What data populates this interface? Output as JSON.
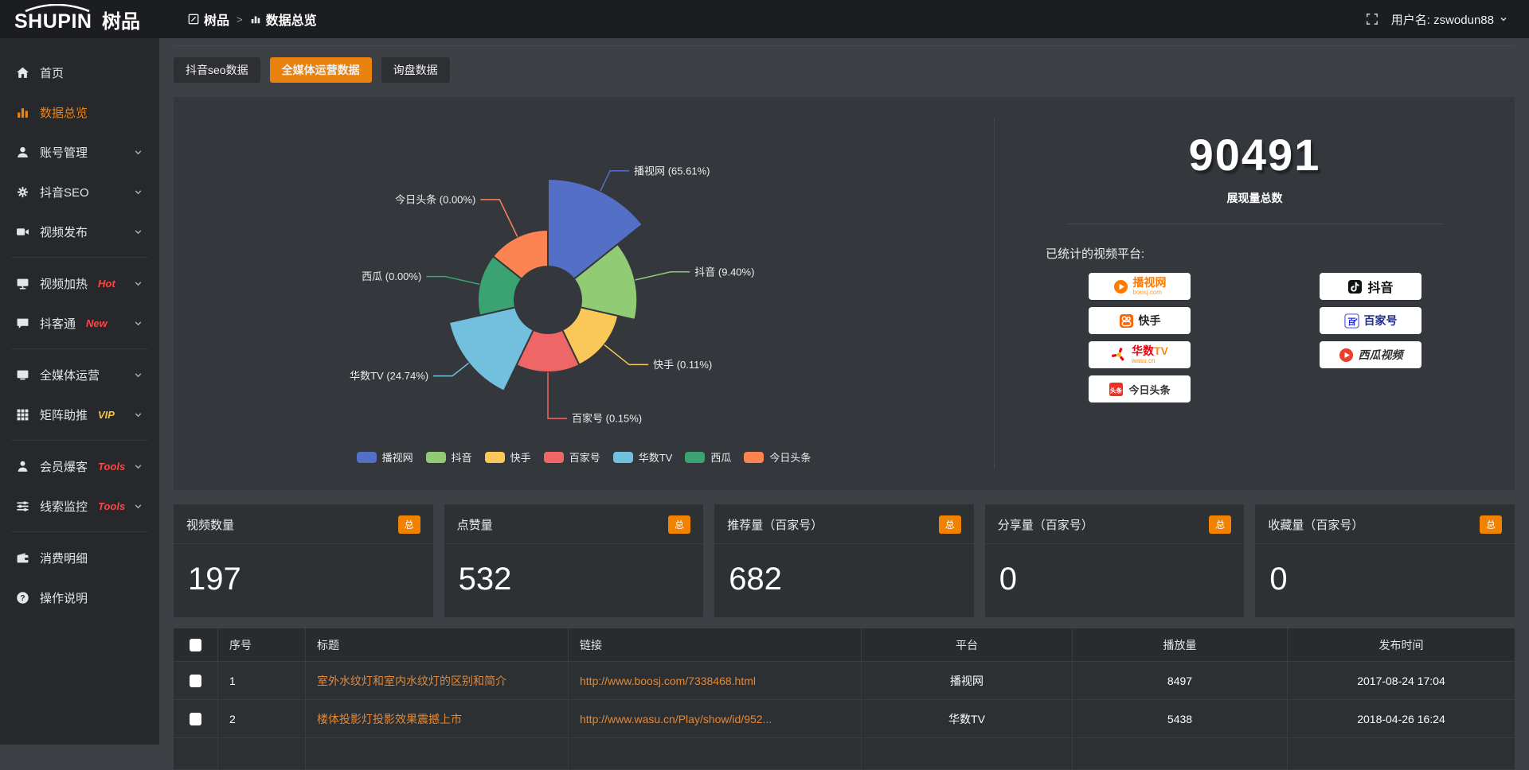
{
  "topbar": {
    "logo_main": "SHUPIN",
    "logo_cn": "树品",
    "breadcrumb_root": "树品",
    "separator": ">",
    "breadcrumb_current": "数据总览",
    "username": "用户名: zswodun88"
  },
  "sidebar": {
    "items": [
      {
        "id": "home",
        "label": "首页",
        "icon": "home-icon"
      },
      {
        "id": "data-overview",
        "label": "数据总览",
        "icon": "bar-chart-icon",
        "active": true
      },
      {
        "id": "account-management",
        "label": "账号管理",
        "icon": "user-icon",
        "chevron": true
      },
      {
        "id": "douyin-seo",
        "label": "抖音SEO",
        "icon": "gear-icon",
        "chevron": true
      },
      {
        "id": "video-publish",
        "label": "视频发布",
        "icon": "video-camera-icon",
        "chevron": true,
        "divider_after": true
      },
      {
        "id": "video-heat",
        "label": "视频加热",
        "icon": "tv-icon",
        "chevron": true,
        "badge": "Hot",
        "badge_color": "#ff4545"
      },
      {
        "id": "douketong",
        "label": "抖客通",
        "icon": "chat-icon",
        "chevron": true,
        "badge": "New",
        "badge_color": "#ff4545",
        "divider_after": true
      },
      {
        "id": "media-operation",
        "label": "全媒体运营",
        "icon": "monitor-icon",
        "chevron": true
      },
      {
        "id": "matrix-boost",
        "label": "矩阵助推",
        "icon": "grid-icon",
        "chevron": true,
        "badge": "VIP",
        "badge_color": "#f5c43c",
        "divider_after": true
      },
      {
        "id": "member-baoke",
        "label": "会员爆客",
        "icon": "person-icon",
        "chevron": true,
        "badge": "Tools",
        "badge_color": "#ff4545"
      },
      {
        "id": "clue-monitor",
        "label": "线索监控",
        "icon": "sliders-icon",
        "chevron": true,
        "badge": "Tools",
        "badge_color": "#ff4545",
        "divider_after": true
      },
      {
        "id": "expense-detail",
        "label": "消费明细",
        "icon": "wallet-icon"
      },
      {
        "id": "help",
        "label": "操作说明",
        "icon": "question-icon"
      }
    ]
  },
  "tabs": [
    {
      "id": "douyin-seo-data",
      "label": "抖音seo数据",
      "active": false
    },
    {
      "id": "media-operation-data",
      "label": "全媒体运营数据",
      "active": true
    },
    {
      "id": "inquiry-data",
      "label": "询盘数据",
      "active": false
    }
  ],
  "chart_data": {
    "type": "pie",
    "variant": "nightingale-rose",
    "legend_position": "bottom",
    "slices": [
      {
        "name": "播视网",
        "percent": 65.61,
        "percent_text": "65.61%",
        "color": "#5470c6"
      },
      {
        "name": "抖音",
        "percent": 9.4,
        "percent_text": "9.40%",
        "color": "#91cc75"
      },
      {
        "name": "快手",
        "percent": 0.11,
        "percent_text": "0.11%",
        "color": "#fac858"
      },
      {
        "name": "百家号",
        "percent": 0.15,
        "percent_text": "0.15%",
        "color": "#ee6666"
      },
      {
        "name": "华数TV",
        "percent": 24.74,
        "percent_text": "24.74%",
        "color": "#73c0de"
      },
      {
        "name": "西瓜",
        "percent": 0.0,
        "percent_text": "0.00%",
        "color": "#3ba272"
      },
      {
        "name": "今日头条",
        "percent": 0.0,
        "percent_text": "0.00%",
        "color": "#fc8452"
      }
    ],
    "legend": [
      "播视网",
      "抖音",
      "快手",
      "百家号",
      "华数TV",
      "西瓜",
      "今日头条"
    ]
  },
  "summary": {
    "total": "90491",
    "total_label": "展现量总数",
    "platforms_label": "已统计的视频平台:",
    "platform_columns": [
      [
        {
          "id": "boosj",
          "name": "播视网",
          "sub": "boosj.com"
        },
        {
          "id": "kuaishou",
          "name": "快手",
          "sub": ""
        },
        {
          "id": "wasu",
          "name": "华数TV",
          "sub": "wasu.cn"
        },
        {
          "id": "toutiao",
          "name": "今日头条",
          "sub": ""
        }
      ],
      [
        {
          "id": "douyin",
          "name": "抖音",
          "sub": ""
        },
        {
          "id": "baijiahao",
          "name": "百家号",
          "sub": ""
        },
        {
          "id": "xigua",
          "name": "西瓜视频",
          "sub": ""
        }
      ]
    ]
  },
  "stats_cards": [
    {
      "label": "视频数量",
      "badge": "总",
      "value": "197"
    },
    {
      "label": "点赞量",
      "badge": "总",
      "value": "532"
    },
    {
      "label": "推荐量（百家号）",
      "badge": "总",
      "value": "682"
    },
    {
      "label": "分享量（百家号）",
      "badge": "总",
      "value": "0"
    },
    {
      "label": "收藏量（百家号）",
      "badge": "总",
      "value": "0"
    }
  ],
  "table": {
    "columns": [
      "序号",
      "标题",
      "链接",
      "平台",
      "播放量",
      "发布时间"
    ],
    "rows": [
      {
        "num": "1",
        "title": "室外水纹灯和室内水纹灯的区别和简介",
        "link": "http://www.boosj.com/7338468.html",
        "platform": "播视网",
        "views": "8497",
        "time": "2017-08-24 17:04"
      },
      {
        "num": "2",
        "title": "楼体投影灯投影效果震撼上市",
        "link": "http://www.wasu.cn/Play/show/id/952...",
        "platform": "华数TV",
        "views": "5438",
        "time": "2018-04-26 16:24"
      }
    ]
  },
  "colors": {
    "accent_orange": "#e8810e",
    "badge_orange": "#f08200",
    "link_orange": "#e0883a",
    "sidebar_active": "#f0830f"
  }
}
